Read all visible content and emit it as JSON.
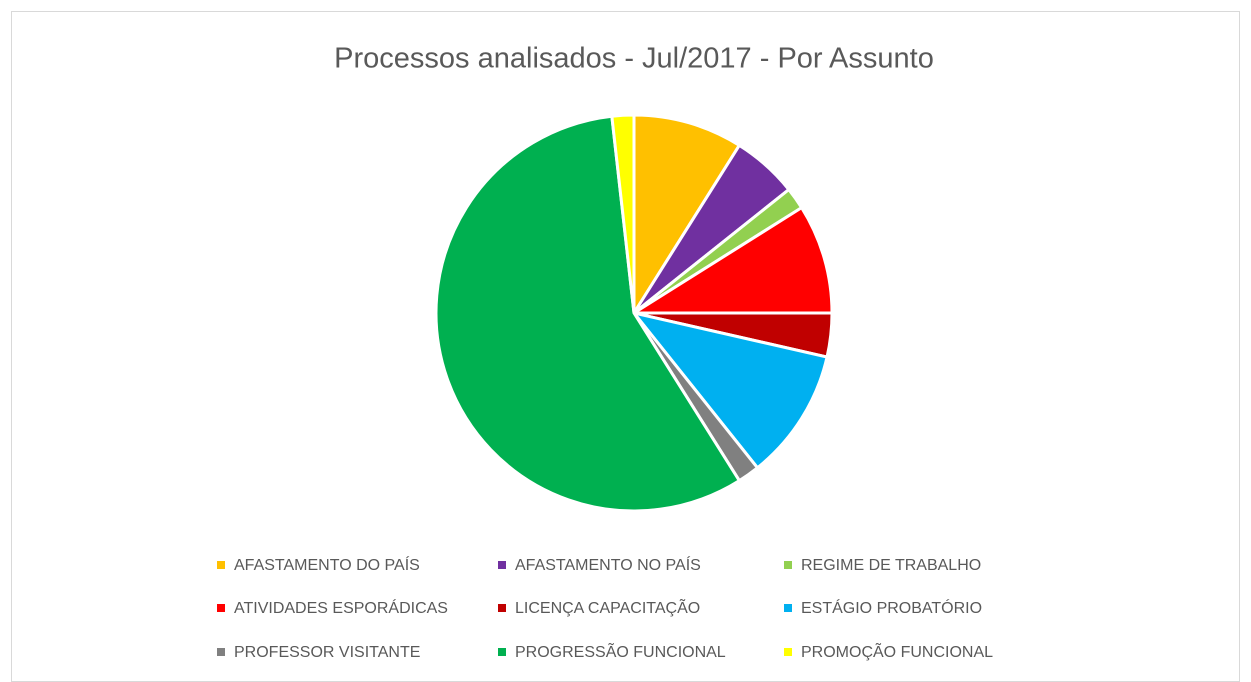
{
  "chart_data": {
    "type": "pie",
    "title": "Processos analisados - Jul/2017 - Por Assunto",
    "categories": [
      "AFASTAMENTO DO PAÍS",
      "AFASTAMENTO NO PAÍS",
      "REGIME DE TRABALHO",
      "ATIVIDADES ESPORÁDICAS",
      "LICENÇA CAPACITAÇÃO",
      "ESTÁGIO PROBATÓRIO",
      "PROFESSOR VISITANTE",
      "PROGRESSÃO FUNCIONAL",
      "PROMOÇÃO FUNCIONAL"
    ],
    "values": [
      5,
      3,
      1,
      5,
      2,
      6,
      1,
      32,
      1
    ],
    "colors": [
      "#ffc000",
      "#7030a0",
      "#92d050",
      "#ff0000",
      "#c00000",
      "#00b0f0",
      "#808080",
      "#00b050",
      "#ffff00"
    ],
    "legend": "bottom"
  }
}
